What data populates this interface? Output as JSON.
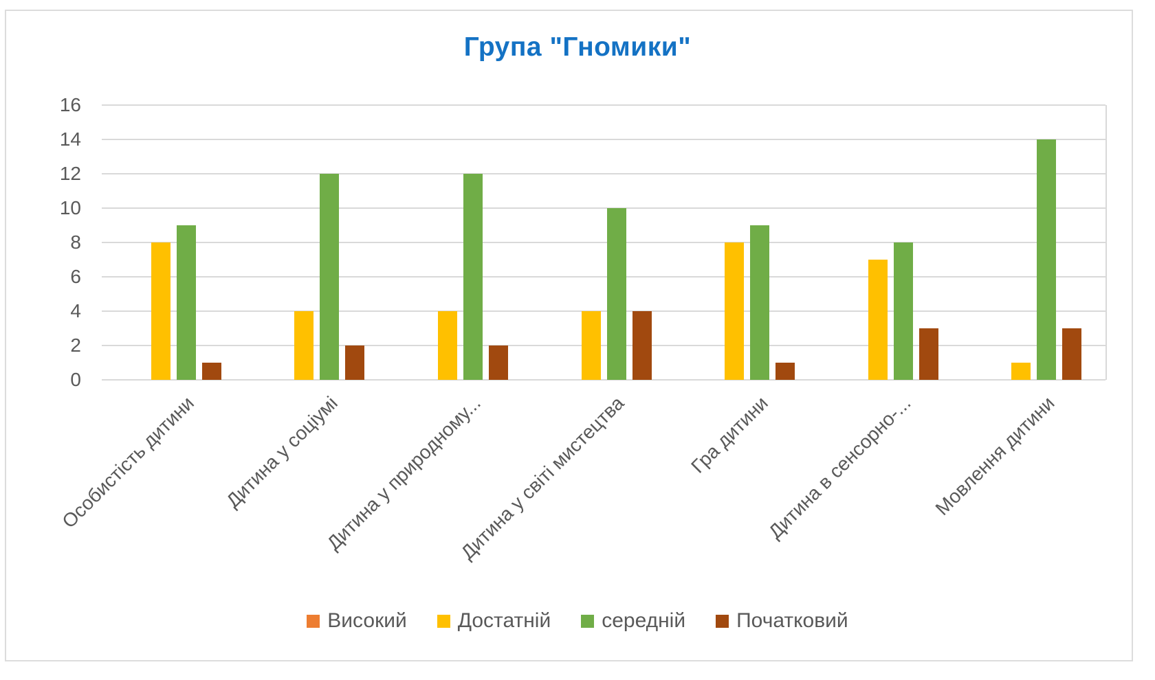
{
  "chart_data": {
    "type": "bar",
    "title": "Група \"Гномики\"",
    "categories": [
      "Особистість дитини",
      "Дитина у соціумі",
      "Дитина у природному...",
      "Дитина у світі мистецтва",
      "Гра дитини",
      "Дитина в сенсорно-...",
      "Мовлення дитини"
    ],
    "series": [
      {
        "name": "Високий",
        "color": "#ED7D31",
        "values": [
          0,
          0,
          0,
          0,
          0,
          0,
          0
        ]
      },
      {
        "name": "Достатній",
        "color": "#FFC000",
        "values": [
          8,
          4,
          4,
          4,
          8,
          7,
          1
        ]
      },
      {
        "name": "середній",
        "color": "#70AD47",
        "values": [
          9,
          12,
          12,
          10,
          9,
          8,
          14
        ]
      },
      {
        "name": "Початковий",
        "color": "#A1490F",
        "values": [
          1,
          2,
          2,
          4,
          1,
          3,
          3
        ]
      }
    ],
    "y_axis": {
      "min": 0,
      "max": 16,
      "step": 2,
      "ticks": [
        16,
        14,
        12,
        10,
        8,
        6,
        4,
        2,
        0
      ]
    },
    "xlabel": "",
    "ylabel": "",
    "grid": true,
    "legend_position": "bottom",
    "colors": {
      "title": "#1472C4",
      "axis_text": "#595959",
      "gridline": "#D9D9D9",
      "frame_border": "#DCDCDC",
      "background": "#FFFFFF"
    }
  }
}
